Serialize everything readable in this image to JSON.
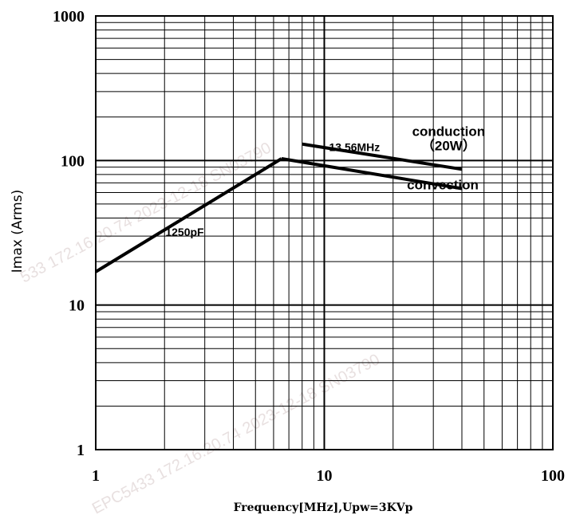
{
  "chart_data": {
    "type": "line",
    "xscale": "log",
    "yscale": "log",
    "xlim": [
      1,
      100
    ],
    "ylim": [
      1,
      1000
    ],
    "grid": true,
    "title": "",
    "xlabel": "Frequency[MHz],Upw=3KVp",
    "ylabel": "Imax (Arms)",
    "x_ticks": [
      "1",
      "10",
      "100"
    ],
    "y_ticks": [
      "1",
      "10",
      "100",
      "1000"
    ],
    "series": [
      {
        "name": "1250pF",
        "x": [
          1,
          6.5
        ],
        "y": [
          17,
          103
        ]
      },
      {
        "name": "conduction (20W)",
        "x": [
          8,
          40
        ],
        "y": [
          130,
          87
        ]
      },
      {
        "name": "convection",
        "x": [
          6.5,
          40
        ],
        "y": [
          103,
          64
        ]
      }
    ],
    "annotations": [
      {
        "text": "13.56MHz",
        "x": 13.56,
        "y": 116
      },
      {
        "text": "conduction",
        "x": 35,
        "y": 148
      },
      {
        "text": "（20W）",
        "x": 35,
        "y": 118
      },
      {
        "text": "convection",
        "x": 33,
        "y": 63
      },
      {
        "text": "1250pF",
        "x": 2.45,
        "y": 30
      }
    ]
  },
  "watermark": [
    "533 172.16.20.74 2023-12-18 SN03790",
    "EPC5433 172.16.20.74 2023-12-18 SN03790"
  ],
  "colors": {
    "line": "#000000",
    "background": "#ffffff"
  }
}
